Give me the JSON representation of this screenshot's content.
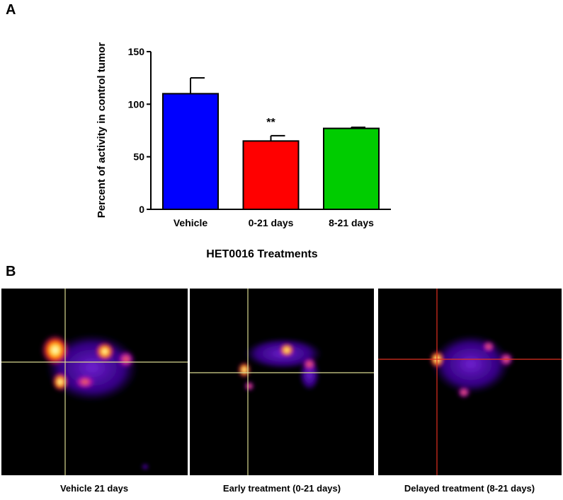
{
  "chart_data": {
    "type": "bar",
    "panel_label": "A",
    "ylabel": "Percent of activity in control tumor",
    "xlabel": "HET0016 Treatments",
    "categories": [
      "Vehicle",
      "0-21 days",
      "8-21 days"
    ],
    "values": [
      110,
      65,
      77
    ],
    "errors": [
      15,
      5,
      1
    ],
    "colors": [
      "#0000ff",
      "#ff0000",
      "#00cc00"
    ],
    "ylim": [
      0,
      150
    ],
    "yticks": [
      0,
      50,
      100,
      150
    ],
    "annotations": [
      {
        "index": 1,
        "text": "**"
      }
    ]
  },
  "panel_b": {
    "label": "B",
    "images": [
      {
        "caption": "Vehicle 21 days"
      },
      {
        "caption": "Early treatment (0-21 days)"
      },
      {
        "caption": "Delayed treatment (8-21 days)"
      }
    ]
  }
}
